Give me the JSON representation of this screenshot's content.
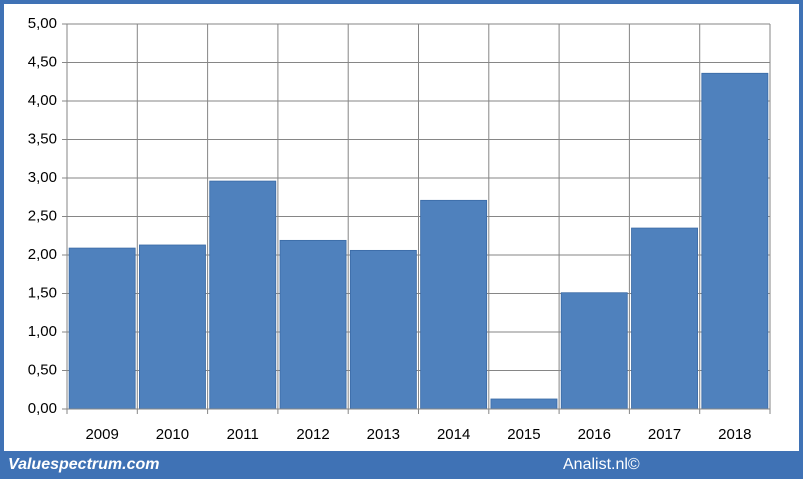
{
  "chart_data": {
    "type": "bar",
    "categories": [
      "2009",
      "2010",
      "2011",
      "2012",
      "2013",
      "2014",
      "2015",
      "2016",
      "2017",
      "2018"
    ],
    "values": [
      2.09,
      2.13,
      2.96,
      2.19,
      2.06,
      2.71,
      0.13,
      1.51,
      2.35,
      4.36
    ],
    "color": "#4f81bd",
    "ylim": [
      0,
      5
    ],
    "yticks": [
      {
        "value": 0,
        "label": "0,00"
      },
      {
        "value": 0.5,
        "label": "0,50"
      },
      {
        "value": 1,
        "label": "1,00"
      },
      {
        "value": 1.5,
        "label": "1,50"
      },
      {
        "value": 2,
        "label": "2,00"
      },
      {
        "value": 2.5,
        "label": "2,50"
      },
      {
        "value": 3,
        "label": "3,00"
      },
      {
        "value": 3.5,
        "label": "3,50"
      },
      {
        "value": 4,
        "label": "4,00"
      },
      {
        "value": 4.5,
        "label": "4,50"
      },
      {
        "value": 5,
        "label": "5,00"
      }
    ],
    "grid": true
  },
  "footer": {
    "left": "Valuespectrum.com",
    "right": "Analist.nl©"
  }
}
